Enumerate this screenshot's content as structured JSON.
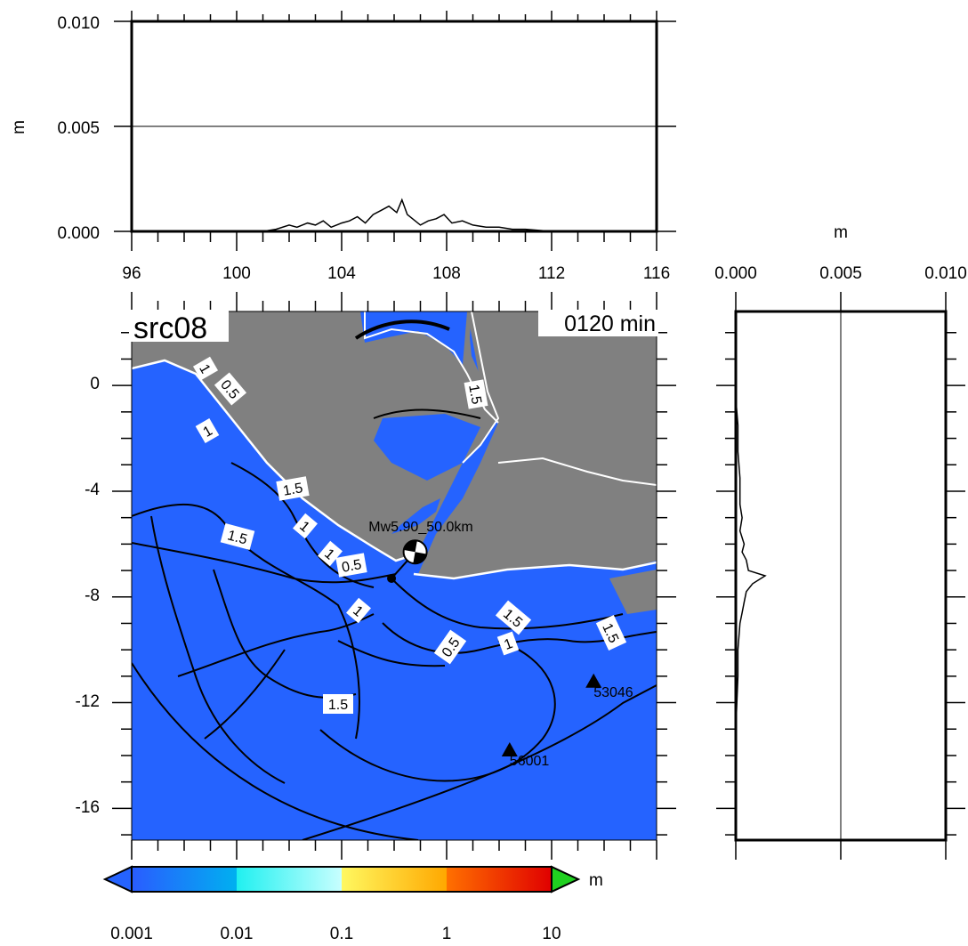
{
  "figure": {
    "source_label": "src08",
    "time_label": "0120 min",
    "event_label": "Mw5.90_50.0km",
    "colors": {
      "sea": "#2563ff",
      "land": "#808080",
      "coast_white": "#ffffff",
      "contour": "#000000"
    }
  },
  "top_panel": {
    "ylabel": "m",
    "yticks": [
      "0.000",
      "0.005",
      "0.010"
    ],
    "xticks": [
      "96",
      "100",
      "104",
      "108",
      "112",
      "116"
    ]
  },
  "right_panel": {
    "xlabel": "m",
    "xticks": [
      "0.000",
      "0.005",
      "0.010"
    ]
  },
  "map_panel": {
    "yticks": [
      "0",
      "-4",
      "-8",
      "-12",
      "-16"
    ],
    "lon_range": [
      96,
      116
    ],
    "lat_range": [
      -17.2,
      2.8
    ],
    "contour_labels": [
      "1",
      "0.5",
      "1",
      "1.5",
      "1.5",
      "1",
      "1",
      "0.5",
      "1",
      "1.5",
      "1.5",
      "0.5",
      "1",
      "1.5",
      "1.5"
    ],
    "stations": [
      {
        "id": "53046",
        "lon": 113.6,
        "lat": -11.2
      },
      {
        "id": "56001",
        "lon": 110.4,
        "lat": -13.8
      }
    ],
    "epicenter": {
      "lon": 106.8,
      "lat": -6.3
    },
    "source_point": {
      "lon": 105.9,
      "lat": -7.3
    }
  },
  "colorbar": {
    "unit": "m",
    "tick_labels": [
      "0.001",
      "0.01",
      "0.1",
      "1",
      "10"
    ],
    "colors": [
      "#2563ff",
      "#0aa8ff",
      "#30f0f0",
      "#c0ffff",
      "#fff050",
      "#ffb000",
      "#ff5000",
      "#e00000",
      "#20d020"
    ]
  },
  "chart_data": [
    {
      "type": "line",
      "title": "",
      "xlabel": "",
      "ylabel": "m",
      "xlim": [
        96,
        116
      ],
      "ylim": [
        0,
        0.01
      ],
      "grid": "y=0.005 line",
      "series": [
        {
          "x": [
            96,
            101,
            101.5,
            102,
            102.3,
            102.7,
            103,
            103.3,
            103.6,
            104,
            104.3,
            104.6,
            104.9,
            105.2,
            105.5,
            105.8,
            106.1,
            106.3,
            106.5,
            106.7,
            107,
            107.3,
            107.6,
            107.9,
            108.2,
            108.6,
            109,
            109.5,
            110,
            110.5,
            111,
            112,
            113,
            114,
            116
          ],
          "y": [
            0,
            0.0,
            0.0001,
            0.0003,
            0.0002,
            0.0004,
            0.0003,
            0.0005,
            0.0002,
            0.0004,
            0.0005,
            0.0007,
            0.0004,
            0.0008,
            0.001,
            0.0012,
            0.0009,
            0.0015,
            0.0008,
            0.0006,
            0.0003,
            0.0005,
            0.0006,
            0.0008,
            0.0004,
            0.0005,
            0.0003,
            0.0002,
            0.0002,
            0.0001,
            0.0001,
            0.0,
            0.0,
            0.0,
            0
          ]
        }
      ]
    },
    {
      "type": "line",
      "title": "",
      "xlabel": "m",
      "ylabel": "",
      "xlim": [
        0,
        0.01
      ],
      "ylim": [
        -17.2,
        2.8
      ],
      "grid": "x=0.005 line",
      "series": [
        {
          "y": [
            -0.5,
            -1.5,
            -2.5,
            -3.5,
            -4.5,
            -5,
            -5.5,
            -6,
            -6.3,
            -6.6,
            -7,
            -7.2,
            -7.5,
            -7.8,
            -8.2,
            -8.6,
            -9,
            -10,
            -11,
            -13,
            -17
          ],
          "x": [
            0,
            0.0001,
            0.0001,
            0.0002,
            0.0002,
            0.0003,
            0.0002,
            0.0004,
            0.0003,
            0.0005,
            0.0006,
            0.0014,
            0.0008,
            0.0005,
            0.0004,
            0.0003,
            0.0002,
            0.0001,
            0.0001,
            0,
            0
          ]
        }
      ]
    }
  ]
}
